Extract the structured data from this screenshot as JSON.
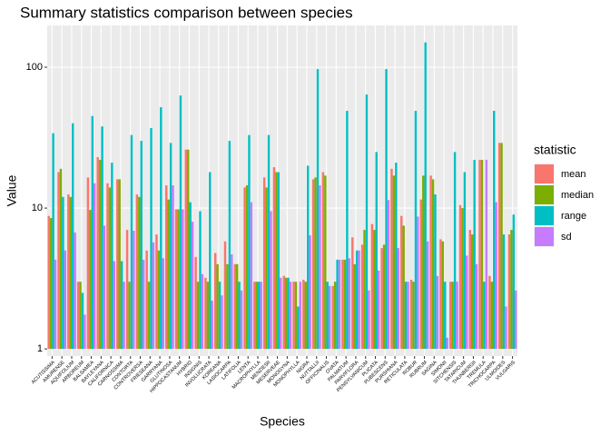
{
  "chart_data": {
    "type": "bar",
    "title": "Summary statistics comparison between species",
    "x_label": "Species",
    "y_label": "Value",
    "legend_title": "statistic",
    "log_scale": true,
    "grid": true,
    "legend_position": "right",
    "ylim": [
      0.89,
      198
    ],
    "yticks": [
      1,
      10,
      100
    ],
    "categories": [
      "ACUTISSIMA",
      "AMURENSE",
      "AQUIFOLIUM",
      "ARBOREUM",
      "BALSAMEA",
      "BAYLEYANA",
      "CALIFORNICA",
      "CARNOSSIMA",
      "CONTORTA",
      "CONTROVERSA",
      "FRIESEANA",
      "GARRYANA",
      "GLUTINOSA",
      "HIPPOCASTANUM",
      "HYBRID",
      "INSIGNIS",
      "INVOLUCRATA",
      "KOREANA",
      "LASIOCARPA",
      "LATIFOLIA",
      "LENTA",
      "MACROPHYLLA",
      "MENZIESII",
      "MESERVEAE",
      "MONOGYNA",
      "MONOPHYLLA",
      "NIGRA",
      "NUTTALLII",
      "OFFICINALIS",
      "OVATA",
      "PALMATUM",
      "PARVIFLORA",
      "PENSYLVANICUM",
      "PLICATA",
      "PUBESCENS",
      "PURSHIANA",
      "RETICULATA",
      "ROBUR",
      "RUBRUM",
      "SAGINA",
      "SIMONII",
      "SITCHENSIS",
      "TATARICUM",
      "THUNBERGII",
      "TREMULA",
      "TRICHOCARPA",
      "ULMOIDES",
      "VULGARIS"
    ],
    "series": [
      {
        "name": "mean",
        "color": "#F8766D",
        "values": [
          8.8,
          18,
          12.5,
          3,
          16.5,
          23,
          15,
          16,
          7,
          12.5,
          5,
          6.5,
          14.5,
          9.8,
          26,
          4.5,
          3.2,
          4.8,
          5.8,
          4,
          14,
          3,
          16.5,
          19.5,
          3.3,
          3,
          3.1,
          16,
          18,
          2.8,
          4.3,
          6.2,
          5.5,
          7.7,
          5.2,
          19,
          8.8,
          3.1,
          11.5,
          17,
          6,
          3,
          10.5,
          7,
          22,
          3.3,
          29,
          6.5
        ]
      },
      {
        "name": "median",
        "color": "#7CAE00",
        "values": [
          8.5,
          19,
          12,
          3,
          9.7,
          22,
          14,
          16,
          3,
          12,
          3,
          5,
          11.5,
          9.8,
          26,
          3,
          3,
          4,
          4,
          4,
          14.5,
          3,
          14,
          18,
          3.2,
          3,
          3,
          16.5,
          17,
          3,
          4.3,
          4,
          7,
          7,
          5.5,
          17,
          7.5,
          3,
          17,
          16,
          5.8,
          3,
          10,
          6.5,
          22,
          3,
          29,
          7
        ]
      },
      {
        "name": "range",
        "color": "#00BFC4",
        "values": [
          34,
          12,
          40,
          2.5,
          45,
          38,
          21,
          4.2,
          33,
          30,
          37,
          52,
          29,
          63,
          11,
          9.5,
          18,
          3,
          30,
          3,
          33,
          3,
          33,
          18,
          3.2,
          2,
          20,
          97,
          3,
          4.3,
          49,
          5,
          64,
          25,
          97,
          21,
          3,
          49,
          150,
          12.5,
          3,
          25,
          18,
          22,
          3,
          49,
          6.5,
          9
        ]
      },
      {
        "name": "sd",
        "color": "#C77CFF",
        "values": [
          4.3,
          5,
          6.7,
          1.75,
          15,
          7.5,
          4.2,
          3,
          6.9,
          4.3,
          5.7,
          4.4,
          14.5,
          9.8,
          8,
          3.4,
          2.2,
          2.4,
          4.7,
          2.6,
          11,
          3,
          9.5,
          3.2,
          3,
          3,
          6.4,
          14.5,
          2.8,
          4.3,
          4.4,
          5,
          2.6,
          3.6,
          11.4,
          5.2,
          3,
          8.7,
          5.8,
          3.3,
          1.2,
          3,
          4.6,
          4,
          22,
          11,
          2,
          2.6
        ]
      }
    ]
  }
}
